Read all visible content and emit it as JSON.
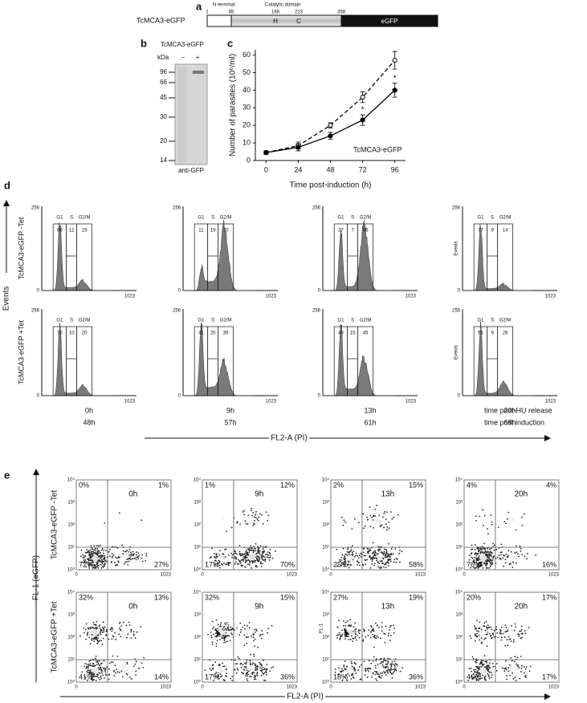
{
  "panel_a": {
    "letter": "a",
    "label": "TcMCA3-eGFP",
    "n_terminal": "N-terminal",
    "catalytic": "Catalytic domain",
    "positions": [
      1,
      85,
      168,
      223,
      358
    ],
    "h": "H",
    "c": "C",
    "egfp": "eGFP"
  },
  "panel_b": {
    "letter": "b",
    "title": "TcMCA3-eGFP",
    "kda": "kDa",
    "lanes": [
      "−",
      "+"
    ],
    "markers": [
      96,
      66,
      45,
      30,
      20,
      14
    ],
    "antibody": "anti-GFP"
  },
  "panel_c_letter": "c",
  "chart_data": {
    "type": "line",
    "x_label": "Time post-induction (h)",
    "y_label": "Number of parasites (10⁶/ml)",
    "legend_label": "TcMCA3-eGFP",
    "asterisks": [
      "*",
      "*"
    ],
    "x": [
      0,
      24,
      48,
      72,
      96
    ],
    "xlim": [
      -8,
      104
    ],
    "xticks": [
      0,
      24,
      48,
      72,
      96
    ],
    "ylim": [
      0,
      63
    ],
    "yticks": [
      0,
      10,
      20,
      30,
      40,
      50,
      60
    ],
    "series": [
      {
        "color": "#000000",
        "style": "dashed",
        "marker": "open",
        "values": [
          4.5,
          8.5,
          20,
          36,
          57
        ],
        "errors": [
          1,
          2,
          1.5,
          3,
          5
        ]
      },
      {
        "color": "#000000",
        "style": "solid",
        "marker": "filled",
        "values": [
          4.5,
          7.5,
          14,
          23,
          40
        ],
        "errors": [
          1,
          2,
          2,
          3,
          4
        ]
      }
    ]
  },
  "panel_d": {
    "letter": "d",
    "y_label": "Events",
    "plot_y_label": "Events",
    "x_label": "FL2-A (PI)",
    "axis": {
      "top": 256,
      "zero": 0,
      "max": 1023
    },
    "gates": [
      "G1",
      "S",
      "G2/M"
    ],
    "rows": [
      {
        "label": "TcMCA3-eGFP -Tet",
        "plots": [
          [
            69,
            12,
            19
          ],
          [
            11,
            19,
            70
          ],
          [
            27,
            7,
            66
          ],
          [
            77,
            9,
            14
          ]
        ]
      },
      {
        "label": "TcMCA3-eGFP +Tet",
        "plots": [
          [
            70,
            10,
            20
          ],
          [
            41,
            20,
            39
          ],
          [
            40,
            15,
            45
          ],
          [
            65,
            9,
            26
          ]
        ]
      }
    ],
    "times_hu": [
      "0h",
      "9h",
      "13h",
      "20h"
    ],
    "times_induction": [
      "48h",
      "57h",
      "61h",
      "68h"
    ],
    "hu_caption": "time post-HU release",
    "induction_caption": "time post induction"
  },
  "panel_e": {
    "letter": "e",
    "y_label": "FL-1 (eGFP)",
    "x_label": "FL2-A (PI)",
    "plot_y_label": "FL-1",
    "yticks": [
      "10⁰",
      "10¹",
      "10²",
      "10³",
      "10⁴"
    ],
    "xticks": [
      "0",
      "1023"
    ],
    "times": [
      "0h",
      "9h",
      "13h",
      "20h"
    ],
    "rows": [
      {
        "label": "TcMCA3-eGFP -Tet",
        "plots": [
          [
            "0%",
            "1%",
            "72%",
            "27%"
          ],
          [
            "1%",
            "12%",
            "17%",
            "70%"
          ],
          [
            "2%",
            "15%",
            "25%",
            "58%"
          ],
          [
            "4%",
            "4%",
            "76%",
            "16%"
          ]
        ]
      },
      {
        "label": "TcMCA3-eGFP +Tet",
        "plots": [
          [
            "32%",
            "13%",
            "41%",
            "14%"
          ],
          [
            "32%",
            "15%",
            "17%",
            "36%"
          ],
          [
            "27%",
            "19%",
            "18%",
            "36%"
          ],
          [
            "20%",
            "17%",
            "46%",
            "17%"
          ]
        ]
      }
    ]
  }
}
